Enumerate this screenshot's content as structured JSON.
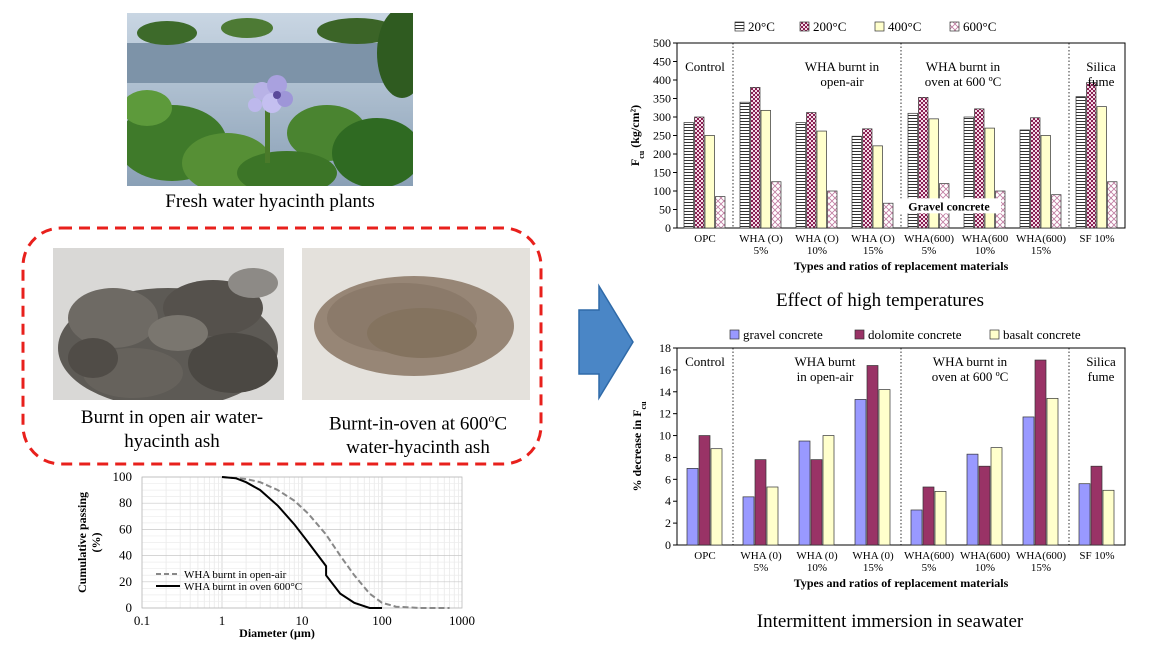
{
  "captions": {
    "plants": "Fresh water hyacinth plants",
    "openair_ash": "Burnt in open air water-hyacinth ash",
    "oven_ash": "Burnt-in-oven at 600oC water-hyacinth ash",
    "high_temp": "Effect of high temperatures",
    "seawater": "Intermittent immersion in seawater"
  },
  "colors": {
    "dashed_border": "#e8201c",
    "arrow_fill": "#4a86c6",
    "arrow_stroke": "#2f6aa8",
    "gravel": "#9999ff",
    "dolomite": "#993366",
    "basalt": "#ffffcc"
  },
  "chart_data": [
    {
      "type": "bar",
      "ylabel": "Fcu (kg/cm²)",
      "xlabel": "Types and ratios of replacement materials",
      "ylim": [
        0,
        500
      ],
      "yticks": [
        0,
        50,
        100,
        150,
        200,
        250,
        300,
        350,
        400,
        450,
        500
      ],
      "categories": [
        "OPC",
        "WHA (O) 5%",
        "WHA (O) 10%",
        "WHA (O) 15%",
        "WHA(600) 5%",
        "WHA(600) 10%",
        "WHA(600) 15%",
        "SF 10%"
      ],
      "tick_lines": [
        [
          "OPC"
        ],
        [
          "WHA (O)",
          "5%"
        ],
        [
          "WHA (O)",
          "10%"
        ],
        [
          "WHA (O)",
          "15%"
        ],
        [
          "WHA(600)",
          "5%"
        ],
        [
          "WHA(600",
          "10%"
        ],
        [
          "WHA(600)",
          "15%"
        ],
        [
          "SF 10%"
        ]
      ],
      "series": [
        {
          "name": "20°C",
          "values": [
            285,
            340,
            285,
            248,
            310,
            300,
            265,
            355
          ]
        },
        {
          "name": "200°C",
          "values": [
            300,
            380,
            312,
            268,
            353,
            322,
            298,
            393
          ]
        },
        {
          "name": "400°C",
          "values": [
            250,
            318,
            262,
            222,
            295,
            270,
            250,
            328
          ]
        },
        {
          "name": "600°C",
          "values": [
            85,
            125,
            100,
            67,
            120,
            100,
            90,
            125
          ]
        }
      ],
      "group_labels": [
        {
          "lines": [
            "Control"
          ]
        },
        {
          "lines": [
            "WHA burnt in",
            "open-air"
          ]
        },
        {
          "lines": [
            "WHA burnt in",
            "oven at 600 ºC"
          ]
        },
        {
          "lines": [
            "Silica",
            "fume"
          ]
        }
      ],
      "annotation": "Gravel concrete",
      "legend": "top"
    },
    {
      "type": "bar",
      "ylabel": "% decrease in Fcu",
      "xlabel": "Types and ratios of replacement materials",
      "ylim": [
        0,
        18
      ],
      "yticks": [
        0,
        2,
        4,
        6,
        8,
        10,
        12,
        14,
        16,
        18
      ],
      "categories": [
        "OPC",
        "WHA (0) 5%",
        "WHA (0) 10%",
        "WHA (0) 15%",
        "WHA(600) 5%",
        "WHA(600) 10%",
        "WHA(600) 15%",
        "SF 10%"
      ],
      "tick_lines": [
        [
          "OPC"
        ],
        [
          "WHA (0)",
          "5%"
        ],
        [
          "WHA (0)",
          "10%"
        ],
        [
          "WHA (0)",
          "15%"
        ],
        [
          "WHA(600)",
          "5%"
        ],
        [
          "WHA(600)",
          "10%"
        ],
        [
          "WHA(600)",
          "15%"
        ],
        [
          "SF 10%"
        ]
      ],
      "series": [
        {
          "name": "gravel concrete",
          "values": [
            7.0,
            4.4,
            9.5,
            13.3,
            3.2,
            8.3,
            11.7,
            5.6
          ]
        },
        {
          "name": "dolomite concrete",
          "values": [
            10.0,
            7.8,
            7.8,
            16.4,
            5.3,
            7.2,
            16.9,
            7.2
          ]
        },
        {
          "name": "basalt concrete",
          "values": [
            8.8,
            5.3,
            10.0,
            14.2,
            4.9,
            8.9,
            13.4,
            5.0
          ]
        }
      ],
      "group_labels": [
        {
          "lines": [
            "Control"
          ]
        },
        {
          "lines": [
            "WHA burnt",
            "in open-air"
          ]
        },
        {
          "lines": [
            "WHA burnt in",
            "oven at 600 ºC"
          ]
        },
        {
          "lines": [
            "Silica",
            "fume"
          ]
        }
      ],
      "legend": "top"
    },
    {
      "type": "line",
      "xlabel": "Diameter (µm)",
      "ylabel_lines": [
        "Cumulative passing",
        "(%)"
      ],
      "xscale": "log",
      "xlim": [
        0.1,
        1000
      ],
      "ylim": [
        0,
        100
      ],
      "xticks": [
        0.1,
        1,
        10,
        100,
        1000
      ],
      "xtick_labels": [
        "0.1",
        "1",
        "10",
        "100",
        "1000"
      ],
      "yticks": [
        0,
        20,
        40,
        60,
        80,
        100
      ],
      "series": [
        {
          "name": "WHA burnt in open-air",
          "style": "dashed",
          "x": [
            1,
            2,
            3,
            5,
            8,
            12,
            20,
            30,
            45,
            70,
            100,
            150,
            300,
            700
          ],
          "y": [
            100,
            98.5,
            96,
            90,
            82,
            72,
            56,
            40,
            25,
            11,
            4,
            1,
            0,
            0
          ]
        },
        {
          "name": "WHA burnt in oven 600°C",
          "style": "solid",
          "x": [
            1,
            1.5,
            2,
            3,
            5,
            8,
            12,
            20,
            20,
            30,
            45,
            70,
            100
          ],
          "y": [
            100,
            99,
            96,
            90,
            78,
            64,
            50,
            32,
            25,
            11,
            4,
            0,
            0
          ]
        }
      ],
      "legend": "bottom-left"
    }
  ]
}
